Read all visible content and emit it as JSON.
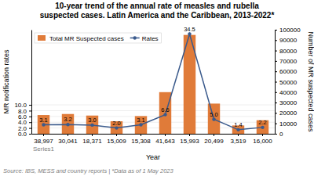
{
  "chart_data": {
    "type": "bar",
    "title": "10-year trend of the annual rate of measles and rubella\nsuspected cases. Latin America and the Caribbean, 2013-2022*",
    "categories": [
      "38,997",
      "30,041",
      "18,371",
      "15,009",
      "15,308",
      "41,643",
      "15,993",
      "20,499",
      "3,519",
      "16,000"
    ],
    "xlabel": "Year",
    "ylabel": "MR notification rates",
    "y2label": "Number of MR suspected cases",
    "series": [
      {
        "name": "Total MR Suspected cases",
        "type": "bar",
        "axis": "y2",
        "color": "#e07b39",
        "values": [
          18000,
          19000,
          17500,
          12000,
          17000,
          40000,
          95000,
          29000,
          8000,
          13000
        ]
      },
      {
        "name": "Rates",
        "type": "line",
        "color": "#3a5a8c",
        "marker": "circle",
        "data_labels": true,
        "values": [
          3.1,
          3.2,
          3.0,
          2.0,
          3.1,
          6.6,
          34.5,
          5.0,
          1.4,
          2.2
        ],
        "value_labels": [
          "3.1",
          "3.2",
          "3.0",
          "2.0",
          "3.1",
          "6.6",
          "34.5",
          "5.0",
          "1.4",
          "2.2"
        ]
      }
    ],
    "ylim": [
      0,
      36
    ],
    "yticks": [
      {
        "value": 0.0,
        "label": "0.0"
      },
      {
        "value": 2.0,
        "label": "2.0"
      },
      {
        "value": 4.0,
        "label": "4.0"
      },
      {
        "value": 6.0,
        "label": "6.0"
      },
      {
        "value": 8.0,
        "label": "8.0"
      },
      {
        "value": 10.0,
        "label": "10.0"
      }
    ],
    "y2lim": [
      0,
      100000
    ],
    "y2ticks": [
      0,
      10000,
      20000,
      30000,
      40000,
      50000,
      60000,
      70000,
      80000,
      90000,
      100000
    ],
    "grid": true,
    "legend": "upper left",
    "annotations": [
      "Series1"
    ],
    "footnote": "Source: IBS, MESS and country reports  |  *Data as of 1 May 2023"
  }
}
